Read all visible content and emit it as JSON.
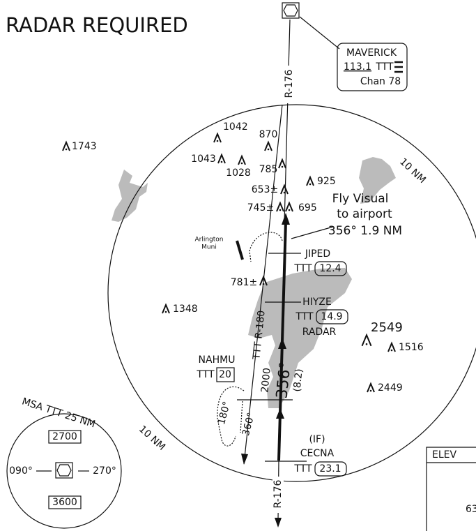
{
  "title": "RADAR REQUIRED",
  "navaid": {
    "name": "MAVERICK",
    "frequency": "113.1",
    "ident": "TTT",
    "channel": "Chan 78"
  },
  "radials": [
    "R-176",
    "R-176",
    "TTT R-180"
  ],
  "range_rings": [
    "10 NM",
    "10 NM"
  ],
  "obstacles": [
    "1743",
    "1042",
    "870",
    "1043",
    "1028",
    "785",
    "925",
    "653±",
    "745±",
    "695",
    "781±",
    "1348",
    "2549",
    "1516",
    "2449"
  ],
  "visual": [
    "Fly Visual",
    "to airport",
    "356° 1.9 NM"
  ],
  "airport": [
    "Arlington",
    "Muni"
  ],
  "fixes": [
    {
      "name": "JIPED",
      "ident": "TTT",
      "distance": "12.4"
    },
    {
      "name": "HIYZE",
      "ident": "TTT",
      "distance": "14.9",
      "note": "RADAR"
    },
    {
      "name": "NAHMU",
      "ident": "TTT",
      "distance": "20"
    },
    {
      "name": "CECNA",
      "role": "(IF)",
      "ident": "TTT",
      "distance": "23.1"
    }
  ],
  "procedure": {
    "altitude": "2000",
    "course": "356°",
    "distance": "(8.2)",
    "hold_outbound": "180°",
    "hold_inbound": "360°"
  },
  "msa": {
    "title": "MSA TTT 25 NM",
    "sectors": [
      "2700",
      "3600"
    ],
    "bearings": [
      "090°",
      "270°"
    ]
  },
  "airport_info": {
    "label": "ELEV",
    "value": "63"
  }
}
